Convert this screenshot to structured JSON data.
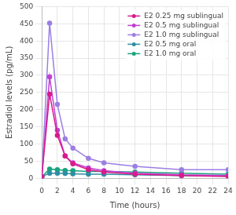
{
  "chart_data": {
    "type": "line",
    "x_label": "Time (hours)",
    "y_label": "Estradiol levels (pg/mL)",
    "x": [
      0,
      1,
      2,
      3,
      4,
      6,
      8,
      12,
      18,
      24
    ],
    "series": [
      {
        "name": "E2 0.25 mg sublingual",
        "color": "#d81b8c",
        "values": [
          5,
          245,
          125,
          65,
          42,
          25,
          18,
          12,
          8,
          5
        ]
      },
      {
        "name": "E2 0.5 mg sublingual",
        "color": "#c13fd3",
        "values": [
          5,
          295,
          140,
          65,
          45,
          30,
          22,
          15,
          10,
          8
        ]
      },
      {
        "name": "E2 1.0 mg sublingual",
        "color": "#9b7fe3",
        "values": [
          5,
          452,
          215,
          115,
          88,
          58,
          45,
          35,
          25,
          25
        ]
      },
      {
        "name": "E2 0.5 mg oral",
        "color": "#2e8fa3",
        "values": [
          5,
          15,
          15,
          14,
          13,
          12,
          12,
          10,
          8,
          7
        ]
      },
      {
        "name": "E2 1.0 mg oral",
        "color": "#19a37f",
        "values": [
          5,
          27,
          25,
          23,
          22,
          20,
          20,
          18,
          15,
          12
        ]
      }
    ],
    "xlim": [
      0,
      24
    ],
    "xticks": [
      0,
      2,
      4,
      6,
      8,
      10,
      12,
      14,
      16,
      18,
      20,
      22,
      24
    ],
    "ylim": [
      0,
      500
    ],
    "yticks": [
      0,
      50,
      100,
      150,
      200,
      250,
      300,
      350,
      400,
      450,
      500
    ],
    "grid": true,
    "legend": "upper right",
    "marker": "circle"
  }
}
